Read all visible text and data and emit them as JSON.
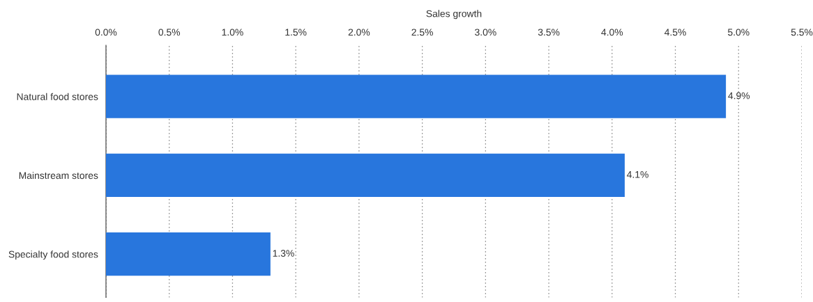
{
  "chart_data": {
    "type": "bar",
    "orientation": "horizontal",
    "xlabel": "Sales growth",
    "categories": [
      "Natural food stores",
      "Mainstream stores",
      "Specialty food stores"
    ],
    "values": [
      4.9,
      4.1,
      1.3
    ],
    "value_labels": [
      "4.9%",
      "4.1%",
      "1.3%"
    ],
    "color": "#2876dd",
    "xlim": [
      0,
      5.5
    ],
    "xticks": [
      {
        "value": 0,
        "label": "0.0%"
      },
      {
        "value": 0.5,
        "label": "0.5%"
      },
      {
        "value": 1,
        "label": "1.0%"
      },
      {
        "value": 1.5,
        "label": "1.5%"
      },
      {
        "value": 2,
        "label": "2.0%"
      },
      {
        "value": 2.5,
        "label": "2.5%"
      },
      {
        "value": 3,
        "label": "3.0%"
      },
      {
        "value": 3.5,
        "label": "3.5%"
      },
      {
        "value": 4,
        "label": "4.0%"
      },
      {
        "value": 4.5,
        "label": "4.5%"
      },
      {
        "value": 5,
        "label": "5.0%"
      },
      {
        "value": 5.5,
        "label": "5.5%"
      }
    ],
    "grid": "x"
  }
}
